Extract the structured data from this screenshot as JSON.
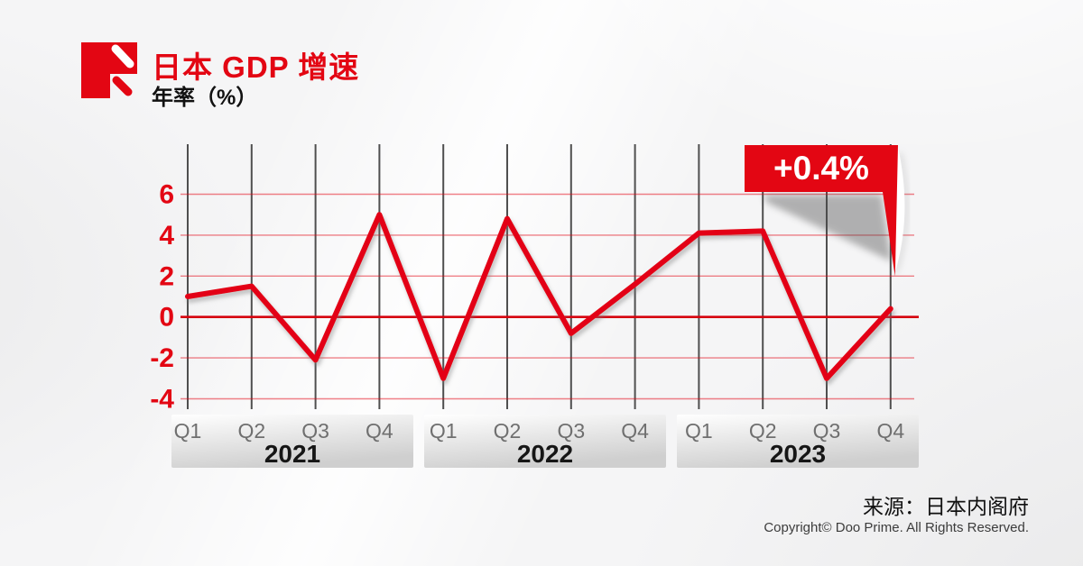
{
  "header": {
    "logo_name": "doo-prime-logo",
    "title": "日本 GDP 增速",
    "subtitle": "年率（%）"
  },
  "footer": {
    "source": "来源：日本内阁府",
    "copyright": "Copyright© Doo Prime. All Rights Reserved."
  },
  "chart_data": {
    "type": "line",
    "title": "日本 GDP 增速",
    "ylabel": "年率（%）",
    "year_groups": [
      {
        "label": "2021",
        "quarters": [
          "Q1",
          "Q2",
          "Q3",
          "Q4"
        ]
      },
      {
        "label": "2022",
        "quarters": [
          "Q1",
          "Q2",
          "Q3",
          "Q4"
        ]
      },
      {
        "label": "2023",
        "quarters": [
          "Q1",
          "Q2",
          "Q3",
          "Q4"
        ]
      }
    ],
    "categories": [
      "2021 Q1",
      "2021 Q2",
      "2021 Q3",
      "2021 Q4",
      "2022 Q1",
      "2022 Q2",
      "2022 Q3",
      "2022 Q4",
      "2023 Q1",
      "2023 Q2",
      "2023 Q3",
      "2023 Q4"
    ],
    "values": [
      1.0,
      1.5,
      -2.1,
      5.0,
      -3.0,
      4.8,
      -0.8,
      1.6,
      4.1,
      4.2,
      -3.0,
      0.4
    ],
    "yticks": [
      6,
      4,
      2,
      0,
      -2,
      -4
    ],
    "ylim": [
      -5,
      7
    ],
    "grid": "on",
    "legend": "none",
    "annotation": {
      "label": "+0.4%",
      "applies_to": "2023 Q4"
    },
    "colors": {
      "line": "#e30613",
      "zero_line": "#d6000f",
      "red_grid": "#e30613",
      "gray_grid": "#4f4f4f",
      "tick_label": "#e30613",
      "quarter_label": "#6f6f6f",
      "year_label": "#161616",
      "banner_bg": "#e30613",
      "banner_text": "#ffffff"
    }
  }
}
